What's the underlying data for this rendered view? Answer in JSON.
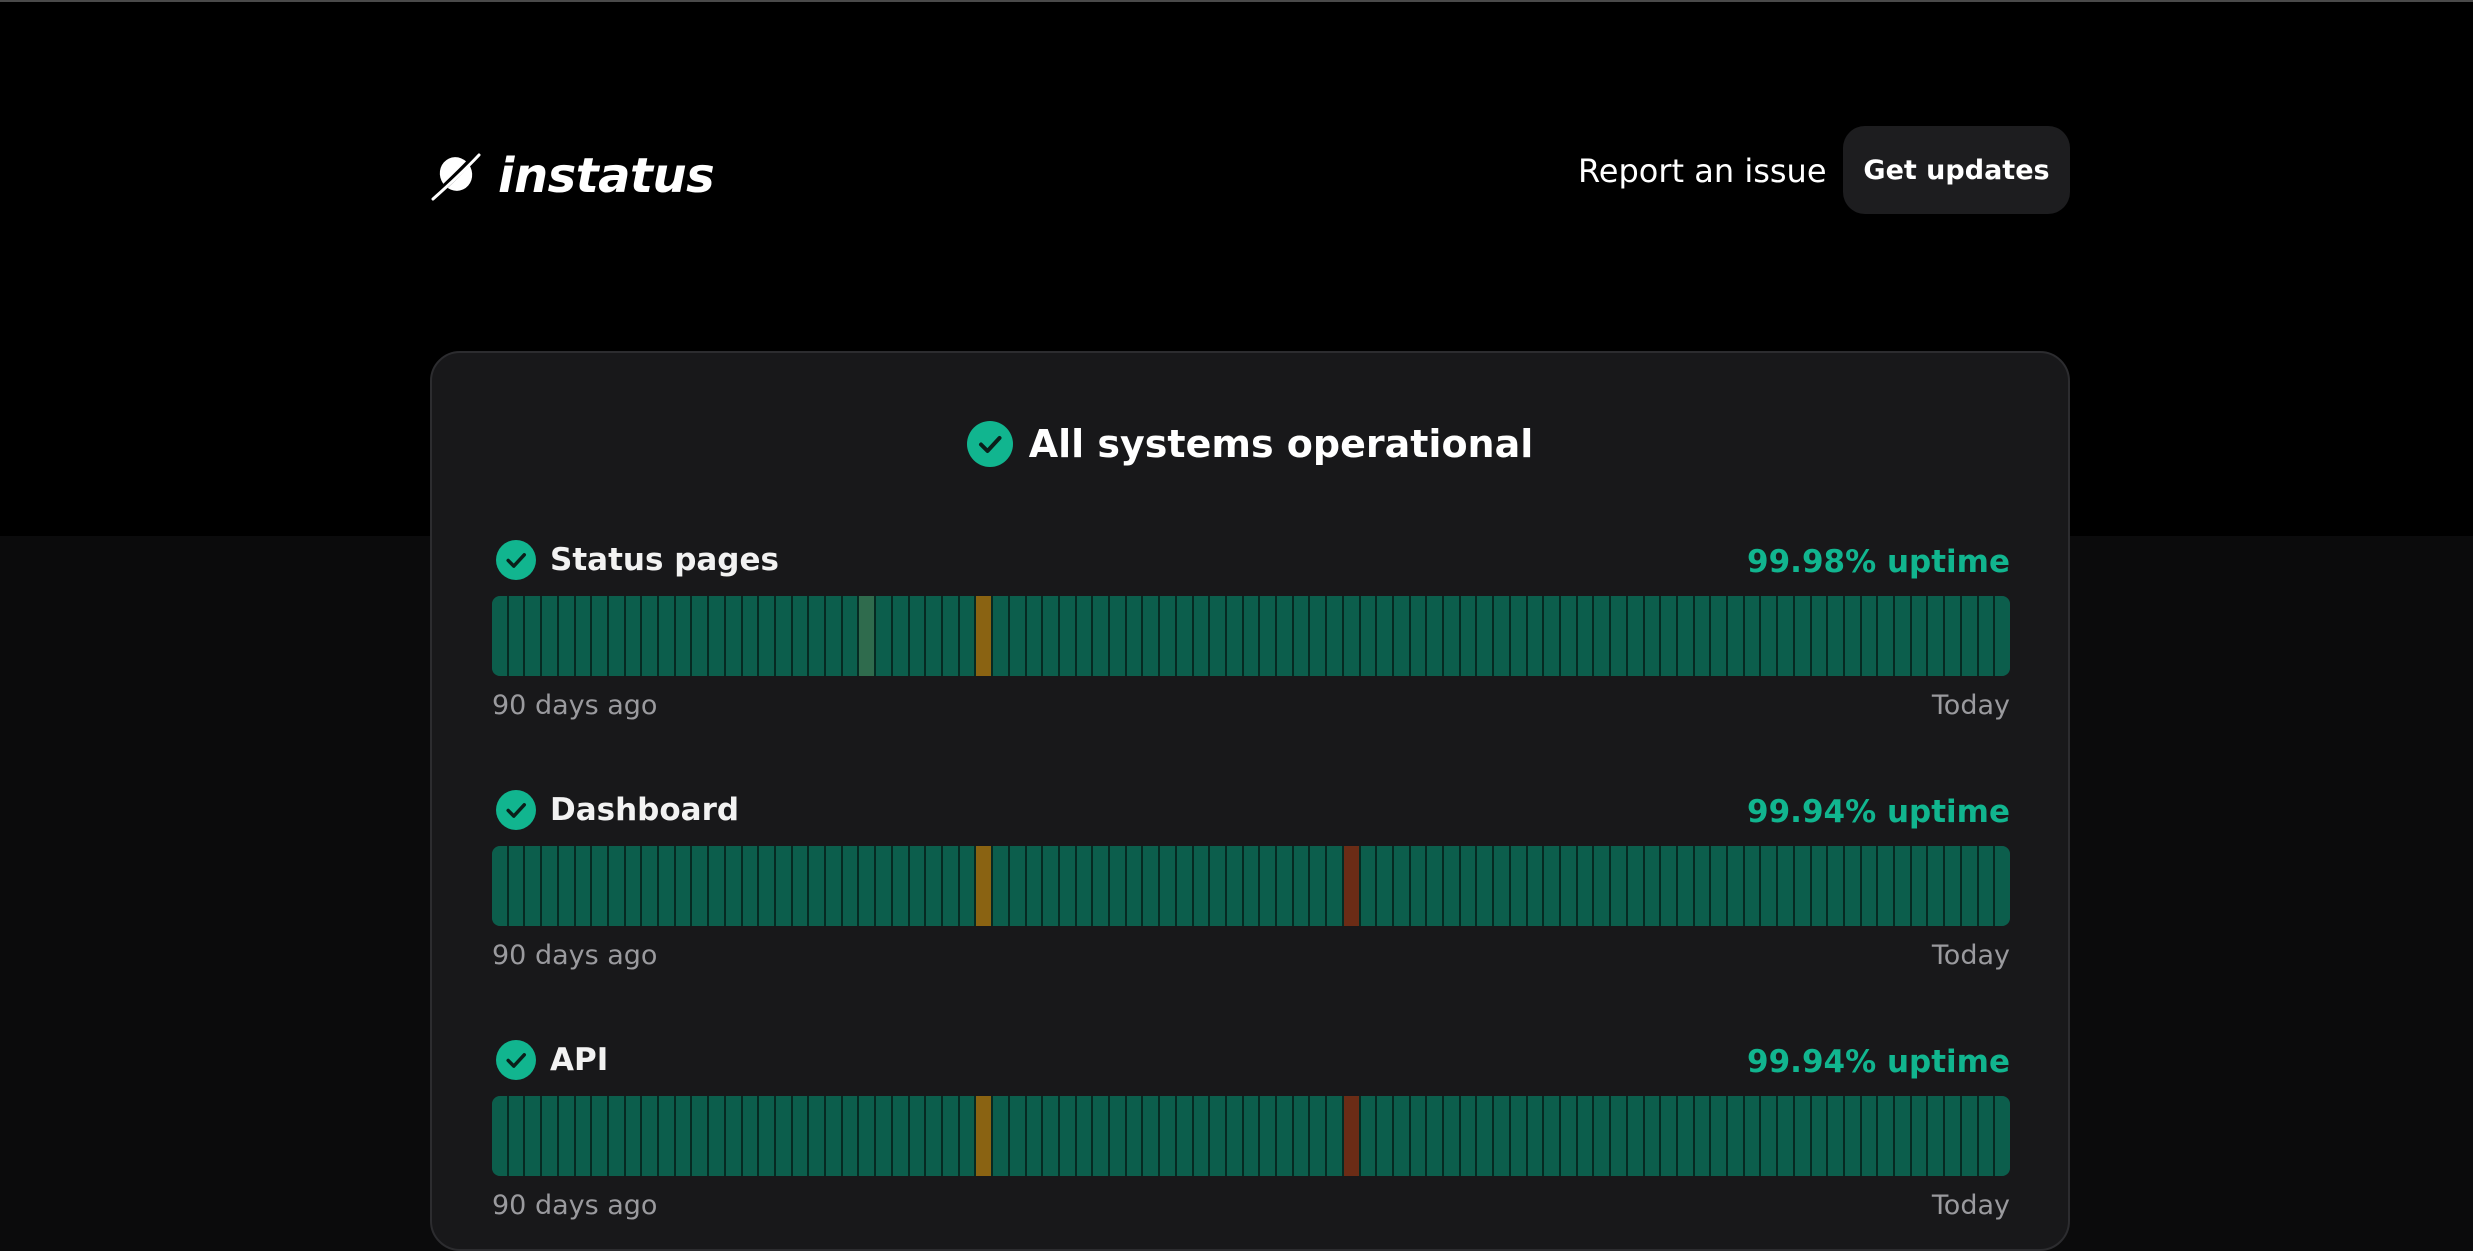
{
  "brand": {
    "name": "instatus",
    "icon": "planet-icon"
  },
  "header": {
    "report_label": "Report an issue",
    "updates_label": "Get updates"
  },
  "status": {
    "overall_text": "All systems operational",
    "icon": "check-circle-icon"
  },
  "colors": {
    "operational": "#0c5e4c",
    "minor": "#8a6312",
    "degraded": "#2f6b4d",
    "major": "#6b2c16",
    "accent": "#11b58f"
  },
  "components": [
    {
      "name": "Status pages",
      "uptime": "99.98% uptime",
      "range_start": "90 days ago",
      "range_end": "Today",
      "incident_days": {
        "22": "degraded",
        "29": "minor"
      }
    },
    {
      "name": "Dashboard",
      "uptime": "99.94% uptime",
      "range_start": "90 days ago",
      "range_end": "Today",
      "incident_days": {
        "29": "minor",
        "51": "major"
      }
    },
    {
      "name": "API",
      "uptime": "99.94% uptime",
      "range_start": "90 days ago",
      "range_end": "Today",
      "incident_days": {
        "29": "minor",
        "51": "major"
      }
    }
  ],
  "days_shown": 91
}
